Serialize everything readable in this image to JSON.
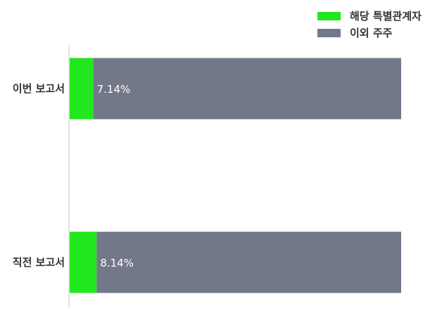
{
  "chart_data": {
    "type": "bar",
    "orientation": "horizontal",
    "stacked": true,
    "categories": [
      "이번 보고서",
      "직전 보고서"
    ],
    "series": [
      {
        "name": "해당 특별관계자",
        "values": [
          7.14,
          8.14
        ],
        "color": "#22e61e"
      },
      {
        "name": "이외 주주",
        "values": [
          92.86,
          91.86
        ],
        "color": "#737889"
      }
    ],
    "data_labels": [
      "7.14%",
      "8.14%"
    ],
    "xlim": [
      0,
      100
    ],
    "grid": false,
    "legend": "top-right"
  }
}
